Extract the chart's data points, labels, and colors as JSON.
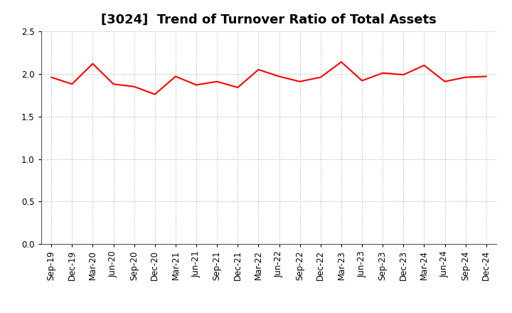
{
  "title": "[3024]  Trend of Turnover Ratio of Total Assets",
  "labels": [
    "Sep-19",
    "Dec-19",
    "Mar-20",
    "Jun-20",
    "Sep-20",
    "Dec-20",
    "Mar-21",
    "Jun-21",
    "Sep-21",
    "Dec-21",
    "Mar-22",
    "Jun-22",
    "Sep-22",
    "Dec-22",
    "Mar-23",
    "Jun-23",
    "Sep-23",
    "Dec-23",
    "Mar-24",
    "Jun-24",
    "Sep-24",
    "Dec-24"
  ],
  "values": [
    1.96,
    1.88,
    2.12,
    1.88,
    1.85,
    1.76,
    1.97,
    1.87,
    1.91,
    1.84,
    2.05,
    1.97,
    1.91,
    1.96,
    2.14,
    1.92,
    2.01,
    1.99,
    2.1,
    1.91,
    1.96,
    1.97
  ],
  "line_color": "#FF0000",
  "line_width": 1.5,
  "ylim": [
    0.0,
    2.5
  ],
  "yticks": [
    0.0,
    0.5,
    1.0,
    1.5,
    2.0,
    2.5
  ],
  "background_color": "#ffffff",
  "grid_color": "#aaaaaa",
  "title_fontsize": 13,
  "tick_fontsize": 8.5
}
